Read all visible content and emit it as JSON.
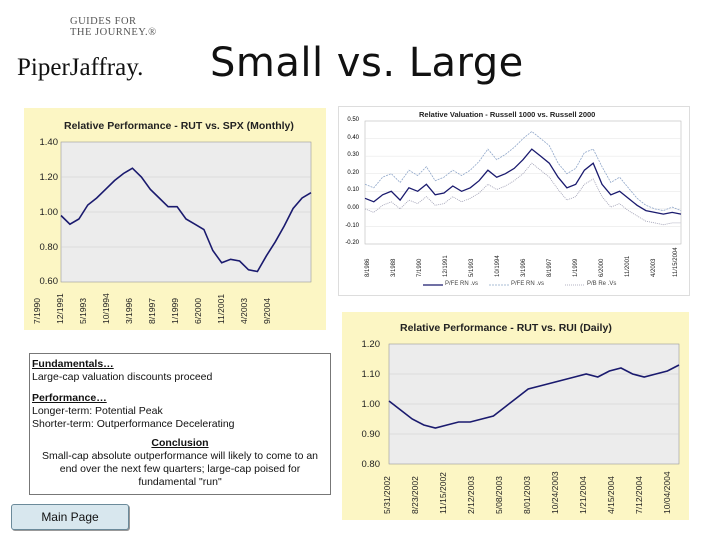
{
  "branding": {
    "tagline_line1": "GUIDES FOR",
    "tagline_line2": "THE JOURNEY.®",
    "company": "PiperJaffray."
  },
  "slide": {
    "title": "Small vs. Large"
  },
  "textbox": {
    "fundamentals_heading": "Fundamentals…",
    "fundamentals_text": "Large-cap valuation discounts proceed",
    "performance_heading": "Performance…",
    "performance_line1": "Longer-term: Potential Peak",
    "performance_line2": "Shorter-term: Outperformance Decelerating",
    "conclusion_heading": "Conclusion",
    "conclusion_line1": "Small-cap absolute outperformance will likely to come to an",
    "conclusion_line2": "end over the next few quarters; large-cap poised for",
    "conclusion_line3": "fundamental \"run\""
  },
  "nav": {
    "main_page": "Main Page"
  },
  "colors": {
    "panel_bg": "#fcf6c4",
    "plot_bg": "#ececec",
    "line_navy": "#1a1a6e"
  },
  "chart_data": [
    {
      "type": "line",
      "title": "Relative Performance - RUT vs. SPX (Monthly)",
      "ylim": [
        0.6,
        1.4
      ],
      "yticks": [
        "1.40",
        "1.20",
        "1.00",
        "0.80",
        "0.60"
      ],
      "xlabels": [
        "7/1990",
        "12/1991",
        "5/1993",
        "10/1994",
        "3/1996",
        "8/1997",
        "1/1999",
        "6/2000",
        "11/2001",
        "4/2003",
        "9/2004"
      ],
      "x": [
        0,
        6,
        12,
        18,
        24,
        30,
        36,
        42,
        48,
        54,
        60,
        66,
        72,
        78,
        84,
        90,
        96,
        102,
        108,
        114,
        120,
        126,
        132,
        138,
        144,
        150,
        156,
        162,
        168
      ],
      "values": [
        0.98,
        0.93,
        0.96,
        1.04,
        1.08,
        1.13,
        1.18,
        1.22,
        1.25,
        1.2,
        1.13,
        1.08,
        1.03,
        1.03,
        0.96,
        0.93,
        0.9,
        0.78,
        0.71,
        0.73,
        0.72,
        0.67,
        0.66,
        0.75,
        0.83,
        0.92,
        1.02,
        1.08,
        1.11
      ]
    },
    {
      "type": "line",
      "title": "Relative Valuation - Russell 1000 vs. Russell 2000",
      "ylim": [
        -0.2,
        0.5
      ],
      "yticks": [
        "0.50",
        "0.40",
        "0.30",
        "0.20",
        "0.10",
        "0.00",
        "-0.10",
        "-0.20"
      ],
      "xlabels": [
        "8/1986",
        "3/1988",
        "7/1990",
        "12/1991",
        "5/1993",
        "10/1994",
        "3/1996",
        "8/1997",
        "1/1999",
        "6/2000",
        "11/2001",
        "4/2003",
        "11/15/2004"
      ],
      "legend": [
        "P/FE RN .vs",
        "P/FE RN .vs",
        "P/B Re .Vs"
      ],
      "x": [
        0,
        6,
        12,
        18,
        24,
        30,
        36,
        42,
        48,
        54,
        60,
        66,
        72,
        78,
        84,
        90,
        96,
        102,
        108,
        114,
        120,
        126,
        132,
        138,
        144,
        150,
        156,
        162,
        168,
        174,
        180,
        186,
        192,
        198,
        204,
        210,
        216
      ],
      "series": [
        {
          "name": "P/FE RN .vs",
          "values": [
            0.06,
            0.04,
            0.08,
            0.1,
            0.05,
            0.12,
            0.1,
            0.14,
            0.08,
            0.09,
            0.13,
            0.1,
            0.12,
            0.16,
            0.22,
            0.18,
            0.2,
            0.23,
            0.28,
            0.34,
            0.3,
            0.26,
            0.18,
            0.12,
            0.14,
            0.22,
            0.26,
            0.14,
            0.08,
            0.1,
            0.06,
            0.02,
            -0.01,
            -0.02,
            -0.03,
            -0.02,
            -0.03
          ]
        },
        {
          "name": "P/FE RN .vs",
          "values": [
            0.14,
            0.12,
            0.18,
            0.2,
            0.15,
            0.22,
            0.19,
            0.24,
            0.16,
            0.18,
            0.22,
            0.19,
            0.22,
            0.27,
            0.34,
            0.28,
            0.31,
            0.35,
            0.4,
            0.44,
            0.4,
            0.36,
            0.26,
            0.2,
            0.23,
            0.32,
            0.34,
            0.24,
            0.15,
            0.18,
            0.12,
            0.06,
            0.02,
            0.0,
            -0.01,
            0.01,
            -0.01
          ]
        },
        {
          "name": "P/B Re .Vs",
          "values": [
            0.0,
            -0.02,
            0.02,
            0.04,
            0.0,
            0.05,
            0.03,
            0.07,
            0.02,
            0.03,
            0.07,
            0.04,
            0.06,
            0.09,
            0.14,
            0.11,
            0.13,
            0.16,
            0.2,
            0.26,
            0.22,
            0.18,
            0.11,
            0.05,
            0.07,
            0.14,
            0.17,
            0.07,
            0.01,
            0.03,
            -0.01,
            -0.04,
            -0.07,
            -0.08,
            -0.09,
            -0.08,
            -0.08
          ]
        }
      ]
    },
    {
      "type": "line",
      "title": "Relative Performance - RUT vs. RUI (Daily)",
      "ylim": [
        0.8,
        1.2
      ],
      "yticks": [
        "1.20",
        "1.10",
        "1.00",
        "0.90",
        "0.80"
      ],
      "xlabels": [
        "5/31/2002",
        "8/23/2002",
        "11/15/2002",
        "2/12/2003",
        "5/08/2003",
        "8/01/2003",
        "10/24/2003",
        "1/21/2004",
        "4/15/2004",
        "7/12/2004",
        "10/04/2004"
      ],
      "x": [
        0,
        4,
        8,
        12,
        16,
        20,
        24,
        28,
        32,
        36,
        40,
        44,
        48,
        52,
        56,
        60,
        64,
        68,
        72,
        76,
        80,
        84,
        88,
        92,
        96,
        100
      ],
      "values": [
        1.01,
        0.98,
        0.95,
        0.93,
        0.92,
        0.93,
        0.94,
        0.94,
        0.95,
        0.96,
        0.99,
        1.02,
        1.05,
        1.06,
        1.07,
        1.08,
        1.09,
        1.1,
        1.09,
        1.11,
        1.12,
        1.1,
        1.09,
        1.1,
        1.11,
        1.13
      ]
    }
  ]
}
